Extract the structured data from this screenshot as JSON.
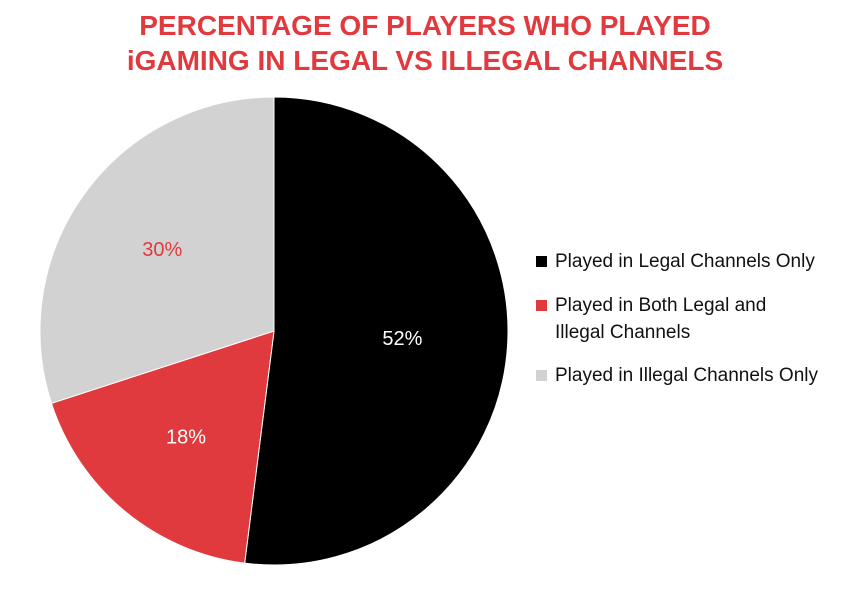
{
  "title": {
    "line1": "PERCENTAGE OF PLAYERS WHO PLAYED",
    "line2": "iGAMING IN LEGAL VS ILLEGAL CHANNELS"
  },
  "colors": {
    "title": "#e03a3e",
    "legal_only": "#000000",
    "both": "#e03a3e",
    "illegal_only": "#d3d2d2",
    "label_on_dark": "#ffffff",
    "label_on_light": "#e03a3e"
  },
  "chart_data": {
    "type": "pie",
    "title": "PERCENTAGE OF PLAYERS WHO PLAYED iGAMING IN LEGAL VS ILLEGAL CHANNELS",
    "start_angle": "12 o'clock",
    "direction": "clockwise",
    "legend_position": "right",
    "slices": [
      {
        "name": "Played in Legal Channels Only",
        "value": 52,
        "label": "52%",
        "color": "#000000",
        "label_color": "#ffffff"
      },
      {
        "name": "Played in Both Legal and Illegal Channels",
        "value": 18,
        "label": "18%",
        "color": "#e03a3e",
        "label_color": "#ffffff"
      },
      {
        "name": "Played in Illegal Channels Only",
        "value": 30,
        "label": "30%",
        "color": "#d3d2d2",
        "label_color": "#e03a3e"
      }
    ]
  },
  "legend": {
    "items": [
      {
        "lines": [
          "Played in Legal Channels Only"
        ],
        "color": "#000000"
      },
      {
        "lines": [
          "Played in Both Legal and",
          "Illegal Channels"
        ],
        "color": "#e03a3e"
      },
      {
        "lines": [
          "Played in Illegal Channels Only"
        ],
        "color": "#d3d2d2"
      }
    ]
  }
}
